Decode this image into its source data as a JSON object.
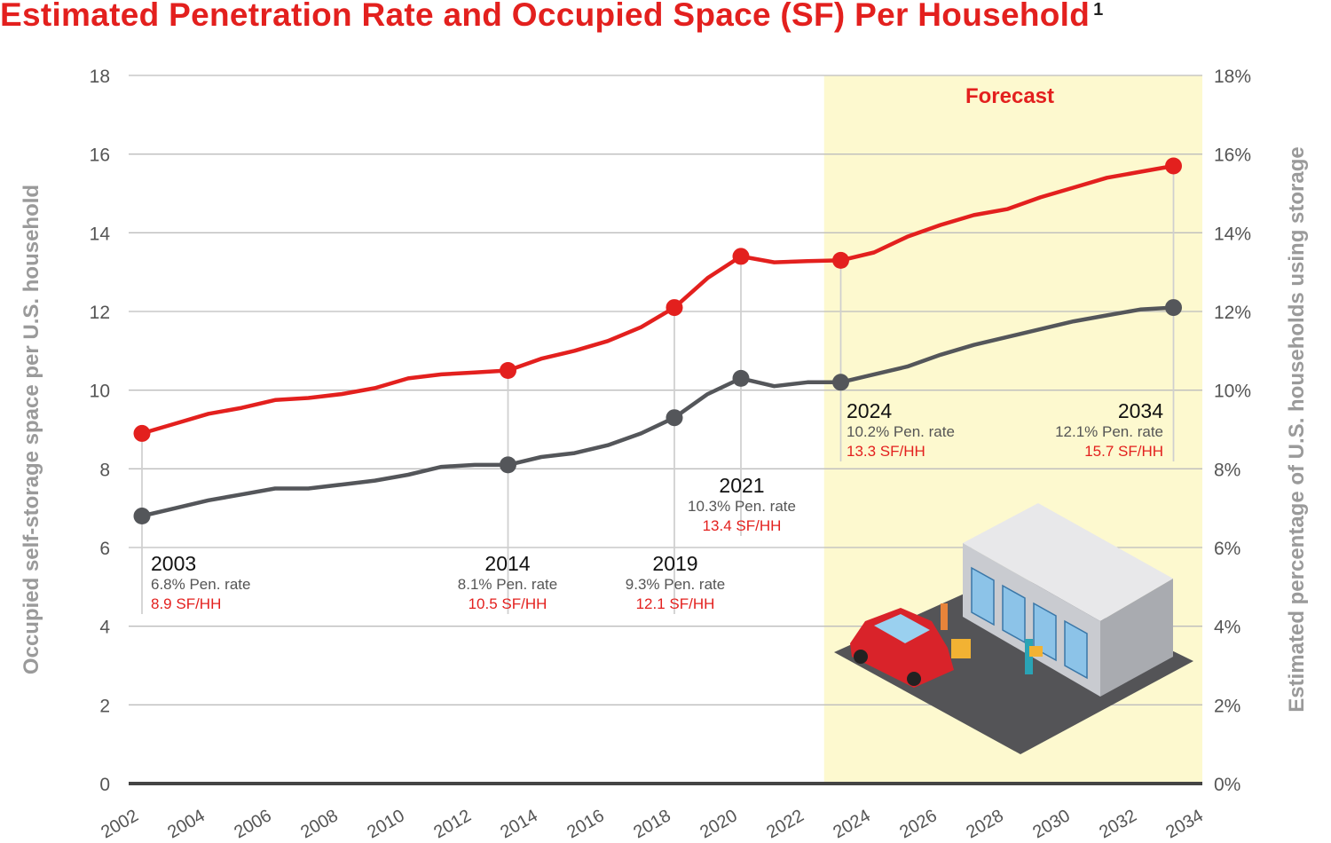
{
  "chart_data": {
    "type": "line",
    "title": "Estimated Penetration Rate and Occupied Space (SF) Per Household",
    "title_footnote": "1",
    "ylabel_left": "Occupied self-storage space per U.S. household",
    "ylabel_right": "Estimated percentage of U.S. households using storage",
    "ylim_left": [
      0,
      18
    ],
    "ylim_right": [
      0,
      18
    ],
    "yticks_left": [
      "0",
      "2",
      "4",
      "6",
      "8",
      "10",
      "12",
      "14",
      "16",
      "18"
    ],
    "yticks_right": [
      "0%",
      "2%",
      "4%",
      "6%",
      "8%",
      "10%",
      "12%",
      "14%",
      "16%",
      "18%"
    ],
    "xlim": [
      2002,
      2034
    ],
    "xticks": [
      "2002",
      "2004",
      "2006",
      "2008",
      "2010",
      "2012",
      "2014",
      "2016",
      "2018",
      "2020",
      "2022",
      "2024",
      "2026",
      "2028",
      "2030",
      "2032",
      "2034"
    ],
    "grid": true,
    "forecast_label": "Forecast",
    "forecast_start": 2023.5,
    "x": [
      2003,
      2004,
      2005,
      2006,
      2007,
      2008,
      2009,
      2010,
      2011,
      2012,
      2013,
      2014,
      2015,
      2016,
      2017,
      2018,
      2019,
      2020,
      2021,
      2022,
      2023,
      2024,
      2025,
      2026,
      2027,
      2028,
      2029,
      2030,
      2031,
      2032,
      2033,
      2034
    ],
    "series": [
      {
        "key": "sf_per_hh",
        "axis": "left",
        "color": "#e3201e",
        "values": [
          8.9,
          9.15,
          9.4,
          9.55,
          9.75,
          9.8,
          9.9,
          10.05,
          10.3,
          10.4,
          10.45,
          10.5,
          10.8,
          11.0,
          11.25,
          11.6,
          12.1,
          12.85,
          13.4,
          13.25,
          13.28,
          13.3,
          13.5,
          13.9,
          14.2,
          14.45,
          14.6,
          14.9,
          15.15,
          15.4,
          15.55,
          15.7
        ]
      },
      {
        "key": "pen_rate",
        "axis": "right",
        "color": "#54565a",
        "values": [
          6.8,
          7.0,
          7.2,
          7.35,
          7.5,
          7.5,
          7.6,
          7.7,
          7.85,
          8.05,
          8.1,
          8.1,
          8.3,
          8.4,
          8.6,
          8.9,
          9.3,
          9.9,
          10.3,
          10.1,
          10.2,
          10.2,
          10.4,
          10.6,
          10.9,
          11.15,
          11.35,
          11.55,
          11.75,
          11.9,
          12.05,
          12.1
        ]
      }
    ],
    "annotations": [
      {
        "year": "2003",
        "pen": "6.8% Pen. rate",
        "sf": "8.9 SF/HH"
      },
      {
        "year": "2014",
        "pen": "8.1% Pen. rate",
        "sf": "10.5 SF/HH"
      },
      {
        "year": "2019",
        "pen": "9.3% Pen. rate",
        "sf": "12.1 SF/HH"
      },
      {
        "year": "2021",
        "pen": "10.3% Pen. rate",
        "sf": "13.4 SF/HH"
      },
      {
        "year": "2024",
        "pen": "10.2% Pen. rate",
        "sf": "13.3 SF/HH"
      },
      {
        "year": "2034",
        "pen": "12.1% Pen. rate",
        "sf": "15.7 SF/HH"
      }
    ]
  }
}
